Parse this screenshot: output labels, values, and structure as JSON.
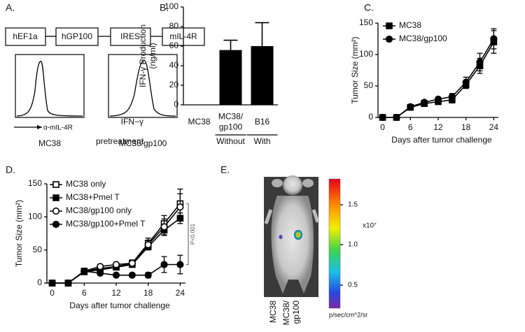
{
  "panel_a": {
    "label": "A.",
    "construct": [
      "hEF1a",
      "hGP100",
      "IRES",
      "mIL-4R"
    ],
    "axis_label": "α-mIL-4R",
    "histograms": [
      "MC38",
      "MC38/gp100"
    ]
  },
  "chart_data": [
    {
      "type": "bar",
      "panel_label": "B.",
      "y_label": "IFN-γ Production\n(ng/ml)",
      "categories": [
        "MC38",
        "MC38/\ngp100",
        "B16"
      ],
      "values": [
        0,
        56,
        60
      ],
      "errors": [
        null,
        10,
        24
      ],
      "color": "#000000",
      "row_label": "IFN−γ\npretreatment",
      "group_labels": [
        null,
        "Without",
        "With"
      ],
      "ylim": [
        0,
        100
      ],
      "yticks": [
        0,
        20,
        40,
        60,
        80,
        100
      ]
    },
    {
      "type": "line",
      "panel_label": "C.",
      "x_label": "Days after tumor challenge",
      "y_label": "Tumor Size (mm²)",
      "x": [
        0,
        3,
        6,
        9,
        12,
        15,
        18,
        21,
        24
      ],
      "series": [
        {
          "name": "MC38",
          "color": "#000000",
          "marker": "square",
          "filled": true,
          "values": [
            0,
            0,
            16,
            22,
            25,
            28,
            52,
            82,
            120
          ],
          "errors": [
            0,
            0,
            3,
            3,
            3,
            5,
            6,
            12,
            18
          ]
        },
        {
          "name": "MC38/gp100",
          "color": "#000000",
          "marker": "circle",
          "filled": true,
          "values": [
            0,
            0,
            17,
            24,
            29,
            33,
            56,
            88,
            125
          ],
          "errors": [
            0,
            0,
            3,
            3,
            3,
            5,
            8,
            14,
            16
          ]
        }
      ],
      "xlim": [
        -1,
        25
      ],
      "xticks": [
        0,
        6,
        12,
        18,
        24
      ],
      "ylim": [
        0,
        150
      ],
      "yticks": [
        0,
        50,
        100,
        150
      ]
    },
    {
      "type": "line",
      "panel_label": "D.",
      "x_label": "Days after tumor challenge",
      "y_label": "Tumor Size (mm²)",
      "annotation": "P<0.001",
      "x": [
        0,
        3,
        6,
        9,
        12,
        15,
        18,
        21,
        24
      ],
      "series": [
        {
          "name": "MC38 only",
          "color": "#000000",
          "marker": "square",
          "filled": false,
          "values": [
            0,
            0,
            18,
            22,
            25,
            30,
            60,
            90,
            120
          ],
          "errors": [
            0,
            0,
            3,
            3,
            3,
            5,
            8,
            12,
            22
          ]
        },
        {
          "name": "MC38+Pmel T",
          "color": "#000000",
          "marker": "square",
          "filled": true,
          "values": [
            0,
            0,
            17,
            20,
            24,
            28,
            55,
            80,
            98
          ],
          "errors": [
            0,
            0,
            2,
            2,
            3,
            3,
            5,
            8,
            8
          ]
        },
        {
          "name": "MC38/gp100 only",
          "color": "#000000",
          "marker": "circle",
          "filled": false,
          "values": [
            0,
            0,
            18,
            25,
            28,
            30,
            58,
            85,
            115
          ],
          "errors": [
            0,
            0,
            3,
            3,
            3,
            4,
            7,
            12,
            20
          ]
        },
        {
          "name": "MC38/gp100+Pmel T",
          "color": "#000000",
          "marker": "circle",
          "filled": true,
          "values": [
            0,
            0,
            18,
            15,
            12,
            12,
            12,
            28,
            28
          ],
          "errors": [
            0,
            0,
            3,
            3,
            2,
            3,
            4,
            12,
            14
          ]
        }
      ],
      "xlim": [
        -1,
        25
      ],
      "xticks": [
        0,
        6,
        12,
        18,
        24
      ],
      "ylim": [
        0,
        150
      ],
      "yticks": [
        0,
        50,
        100,
        150
      ]
    }
  ],
  "panel_e": {
    "label": "E.",
    "colorbar_ticks": [
      "1.5",
      "1.0",
      "0.5"
    ],
    "scale": "x10⁷",
    "units": "p/sec/cm^2/sr",
    "lanes": [
      "MC38",
      "MC38/\ngp100"
    ]
  }
}
